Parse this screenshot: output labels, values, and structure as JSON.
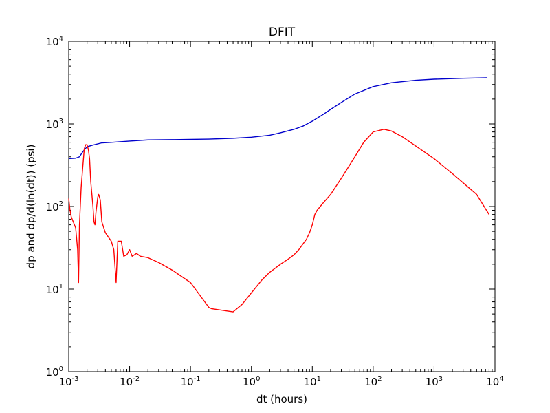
{
  "chart_data": {
    "type": "line",
    "title": "DFIT",
    "xlabel": "dt (hours)",
    "ylabel": "dp and dp/d(ln(dt)) (psi)",
    "xscale": "log",
    "yscale": "log",
    "xlim": [
      0.001,
      10000
    ],
    "ylim": [
      1,
      10000
    ],
    "x_ticks": [
      {
        "base": "10",
        "exp": "-3",
        "value": 0.001
      },
      {
        "base": "10",
        "exp": "-2",
        "value": 0.01
      },
      {
        "base": "10",
        "exp": "-1",
        "value": 0.1
      },
      {
        "base": "10",
        "exp": "0",
        "value": 1
      },
      {
        "base": "10",
        "exp": "1",
        "value": 10
      },
      {
        "base": "10",
        "exp": "2",
        "value": 100
      },
      {
        "base": "10",
        "exp": "3",
        "value": 1000
      },
      {
        "base": "10",
        "exp": "4",
        "value": 10000
      }
    ],
    "y_ticks": [
      {
        "base": "10",
        "exp": "0",
        "value": 1
      },
      {
        "base": "10",
        "exp": "1",
        "value": 10
      },
      {
        "base": "10",
        "exp": "2",
        "value": 100
      },
      {
        "base": "10",
        "exp": "3",
        "value": 1000
      },
      {
        "base": "10",
        "exp": "4",
        "value": 10000
      }
    ],
    "grid": false,
    "series": [
      {
        "color": "#0000cc",
        "points": [
          [
            0.001,
            380
          ],
          [
            0.0013,
            385
          ],
          [
            0.0015,
            400
          ],
          [
            0.0017,
            460
          ],
          [
            0.002,
            530
          ],
          [
            0.0025,
            555
          ],
          [
            0.0035,
            590
          ],
          [
            0.005,
            598
          ],
          [
            0.01,
            620
          ],
          [
            0.02,
            640
          ],
          [
            0.05,
            645
          ],
          [
            0.1,
            650
          ],
          [
            0.2,
            655
          ],
          [
            0.5,
            670
          ],
          [
            1,
            690
          ],
          [
            2,
            730
          ],
          [
            3,
            780
          ],
          [
            5,
            860
          ],
          [
            7,
            940
          ],
          [
            10,
            1080
          ],
          [
            15,
            1300
          ],
          [
            20,
            1500
          ],
          [
            30,
            1820
          ],
          [
            50,
            2300
          ],
          [
            100,
            2830
          ],
          [
            200,
            3150
          ],
          [
            500,
            3380
          ],
          [
            1000,
            3480
          ],
          [
            3000,
            3570
          ],
          [
            7500,
            3620
          ]
        ]
      },
      {
        "color": "#ff0000",
        "points": [
          [
            0.001,
            125
          ],
          [
            0.00105,
            90
          ],
          [
            0.0011,
            75
          ],
          [
            0.0013,
            55
          ],
          [
            0.0014,
            30
          ],
          [
            0.00145,
            12
          ],
          [
            0.0015,
            60
          ],
          [
            0.0016,
            170
          ],
          [
            0.0017,
            300
          ],
          [
            0.0018,
            500
          ],
          [
            0.0019,
            560
          ],
          [
            0.002,
            560
          ],
          [
            0.0021,
            490
          ],
          [
            0.0022,
            380
          ],
          [
            0.0023,
            200
          ],
          [
            0.0025,
            100
          ],
          [
            0.0026,
            65
          ],
          [
            0.0027,
            60
          ],
          [
            0.0028,
            85
          ],
          [
            0.003,
            130
          ],
          [
            0.0031,
            140
          ],
          [
            0.0033,
            120
          ],
          [
            0.0035,
            65
          ],
          [
            0.004,
            48
          ],
          [
            0.005,
            38
          ],
          [
            0.0055,
            30
          ],
          [
            0.006,
            12
          ],
          [
            0.0064,
            38
          ],
          [
            0.0073,
            38
          ],
          [
            0.008,
            25
          ],
          [
            0.009,
            26
          ],
          [
            0.01,
            30
          ],
          [
            0.011,
            25
          ],
          [
            0.013,
            27
          ],
          [
            0.015,
            25
          ],
          [
            0.02,
            24
          ],
          [
            0.03,
            21
          ],
          [
            0.05,
            17
          ],
          [
            0.1,
            12
          ],
          [
            0.2,
            6
          ],
          [
            0.22,
            5.8
          ],
          [
            0.5,
            5.3
          ],
          [
            0.7,
            6.5
          ],
          [
            1,
            9
          ],
          [
            1.5,
            13
          ],
          [
            2,
            16
          ],
          [
            3,
            20
          ],
          [
            4,
            23
          ],
          [
            5,
            26
          ],
          [
            6,
            30
          ],
          [
            7,
            35
          ],
          [
            8,
            40
          ],
          [
            9,
            48
          ],
          [
            10,
            60
          ],
          [
            11,
            80
          ],
          [
            12,
            90
          ],
          [
            15,
            110
          ],
          [
            20,
            140
          ],
          [
            30,
            220
          ],
          [
            50,
            400
          ],
          [
            70,
            600
          ],
          [
            100,
            800
          ],
          [
            150,
            860
          ],
          [
            200,
            820
          ],
          [
            300,
            700
          ],
          [
            500,
            540
          ],
          [
            1000,
            380
          ],
          [
            2000,
            250
          ],
          [
            5000,
            140
          ],
          [
            8000,
            80
          ]
        ]
      }
    ]
  }
}
